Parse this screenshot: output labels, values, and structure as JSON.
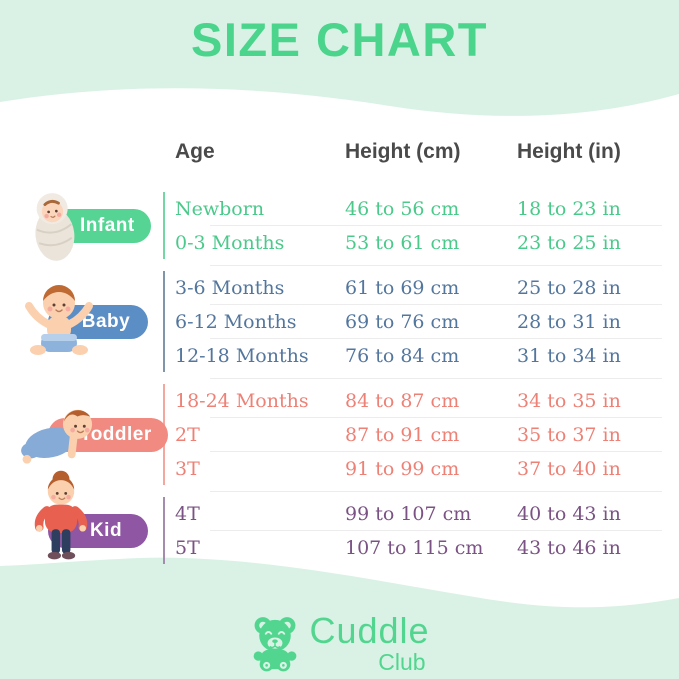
{
  "title": "SIZE CHART",
  "colors": {
    "background": "#d9f2e5",
    "card": "#ffffff",
    "title": "#4bd48c",
    "header_text": "#4a4a4a",
    "divider": "#ececec",
    "logo": "#52d68f"
  },
  "table": {
    "headers": {
      "age": "Age",
      "height_cm": "Height (cm)",
      "height_in": "Height (in)"
    },
    "groups": [
      {
        "id": "infant",
        "label": "Infant",
        "icon": "swaddled-infant-illustration",
        "pill_color": "#55d493",
        "text_color": "#4bc98b",
        "line_color": "#74d6a4",
        "rows": [
          {
            "age": "Newborn",
            "height_cm": "46 to 56 cm",
            "height_in": "18 to 23 in"
          },
          {
            "age": "0-3 Months",
            "height_cm": "53 to 61 cm",
            "height_in": "23 to 25 in"
          }
        ]
      },
      {
        "id": "baby",
        "label": "Baby",
        "icon": "sitting-baby-illustration",
        "pill_color": "#5c8ec6",
        "text_color": "#53769d",
        "line_color": "#8095ab",
        "rows": [
          {
            "age": "3-6 Months",
            "height_cm": "61 to 69 cm",
            "height_in": "25 to 28 in"
          },
          {
            "age": "6-12 Months",
            "height_cm": "69 to 76 cm",
            "height_in": "28 to 31 in"
          },
          {
            "age": "12-18 Months",
            "height_cm": "76 to 84 cm",
            "height_in": "31 to 34 in"
          }
        ]
      },
      {
        "id": "toddler",
        "label": "Toddler",
        "icon": "crawling-toddler-illustration",
        "pill_color": "#f18a80",
        "text_color": "#ed8176",
        "line_color": "#f3a79e",
        "rows": [
          {
            "age": "18-24 Months",
            "height_cm": "84 to 87 cm",
            "height_in": "34 to 35 in"
          },
          {
            "age": "2T",
            "height_cm": "87 to 91 cm",
            "height_in": "35 to 37 in"
          },
          {
            "age": "3T",
            "height_cm": "91 to 99 cm",
            "height_in": "37 to 40 in"
          }
        ]
      },
      {
        "id": "kid",
        "label": "Kid",
        "icon": "standing-kid-illustration",
        "pill_color": "#8f57a3",
        "text_color": "#7a5283",
        "line_color": "#a58bad",
        "rows": [
          {
            "age": "4T",
            "height_cm": "99 to 107 cm",
            "height_in": "40 to 43 in"
          },
          {
            "age": "5T",
            "height_cm": "107 to 115 cm",
            "height_in": "43 to 46 in"
          }
        ]
      }
    ]
  },
  "footer": {
    "brand_line1": "Cuddle",
    "brand_line2": "Club",
    "icon": "teddy-bear-icon"
  },
  "chart_data": {
    "type": "table",
    "title": "SIZE CHART",
    "columns": [
      "Age",
      "Height (cm)",
      "Height (in)"
    ],
    "row_group_labels": [
      "Infant",
      "Infant",
      "Baby",
      "Baby",
      "Baby",
      "Toddler",
      "Toddler",
      "Toddler",
      "Kid",
      "Kid"
    ],
    "rows": [
      [
        "Newborn",
        "46 to 56 cm",
        "18 to 23 in"
      ],
      [
        "0-3 Months",
        "53 to 61 cm",
        "23 to 25 in"
      ],
      [
        "3-6 Months",
        "61 to 69 cm",
        "25 to 28 in"
      ],
      [
        "6-12 Months",
        "69 to 76 cm",
        "28 to 31 in"
      ],
      [
        "12-18 Months",
        "76 to 84 cm",
        "31 to 34 in"
      ],
      [
        "18-24 Months",
        "84 to 87 cm",
        "34 to 35 in"
      ],
      [
        "2T",
        "87 to 91 cm",
        "35 to 37 in"
      ],
      [
        "3T",
        "91 to 99 cm",
        "37 to 40 in"
      ],
      [
        "4T",
        "99 to 107 cm",
        "40 to 43 in"
      ],
      [
        "5T",
        "107 to 115 cm",
        "43 to 46 in"
      ]
    ]
  }
}
